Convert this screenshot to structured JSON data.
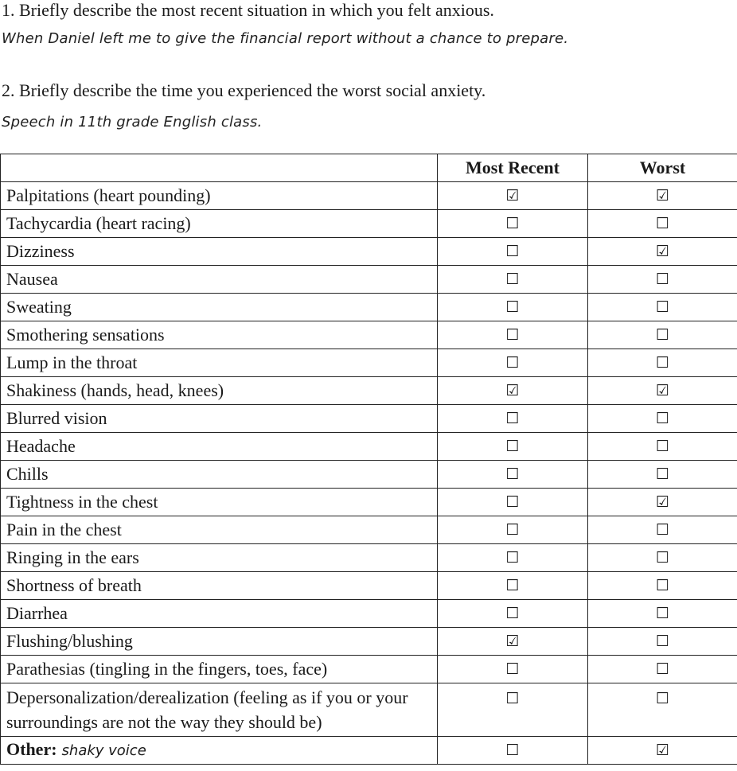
{
  "questions": [
    {
      "prompt": "1. Briefly describe the most recent situation in which you felt anxious.",
      "answer": "When Daniel left me to give the financial report without a chance to prepare."
    },
    {
      "prompt": "2. Briefly describe the time you experienced the worst social anxiety.",
      "answer": "Speech in 11th grade English class."
    }
  ],
  "table": {
    "headers": {
      "symptom": "",
      "recent": "Most Recent",
      "worst": "Worst"
    },
    "glyphs": {
      "checked": "☑",
      "unchecked": "☐"
    },
    "rows": [
      {
        "symptom": "Palpitations (heart pounding)",
        "recent": "☑",
        "worst": "☑"
      },
      {
        "symptom": "Tachycardia (heart racing)",
        "recent": "☐",
        "worst": "☐"
      },
      {
        "symptom": "Dizziness",
        "recent": "☐",
        "worst": "☑"
      },
      {
        "symptom": "Nausea",
        "recent": "☐",
        "worst": "☐"
      },
      {
        "symptom": "Sweating",
        "recent": "☐",
        "worst": "☐"
      },
      {
        "symptom": "Smothering sensations",
        "recent": "☐",
        "worst": "☐"
      },
      {
        "symptom": "Lump in the throat",
        "recent": "☐",
        "worst": "☐"
      },
      {
        "symptom": "Shakiness (hands, head, knees)",
        "recent": "☑",
        "worst": "☑"
      },
      {
        "symptom": "Blurred vision",
        "recent": "☐",
        "worst": "☐"
      },
      {
        "symptom": "Headache",
        "recent": "☐",
        "worst": "☐"
      },
      {
        "symptom": "Chills",
        "recent": "☐",
        "worst": "☐"
      },
      {
        "symptom": "Tightness in the chest",
        "recent": "☐",
        "worst": "☑"
      },
      {
        "symptom": "Pain in the chest",
        "recent": "☐",
        "worst": "☐"
      },
      {
        "symptom": "Ringing in the ears",
        "recent": "☐",
        "worst": "☐"
      },
      {
        "symptom": "Shortness of breath",
        "recent": "☐",
        "worst": "☐"
      },
      {
        "symptom": "Diarrhea",
        "recent": "☐",
        "worst": "☐"
      },
      {
        "symptom": "Flushing/blushing",
        "recent": "☑",
        "worst": "☐"
      },
      {
        "symptom": "Parathesias (tingling in the fingers, toes, face)",
        "recent": "☐",
        "worst": "☐"
      },
      {
        "symptom": "Depersonalization/derealization (feeling as if you or your surroundings are not the way they should be)",
        "recent": "☐",
        "worst": "☐"
      }
    ],
    "other": {
      "label": "Other:",
      "value": "shaky voice",
      "recent": "☐",
      "worst": "☑"
    }
  }
}
